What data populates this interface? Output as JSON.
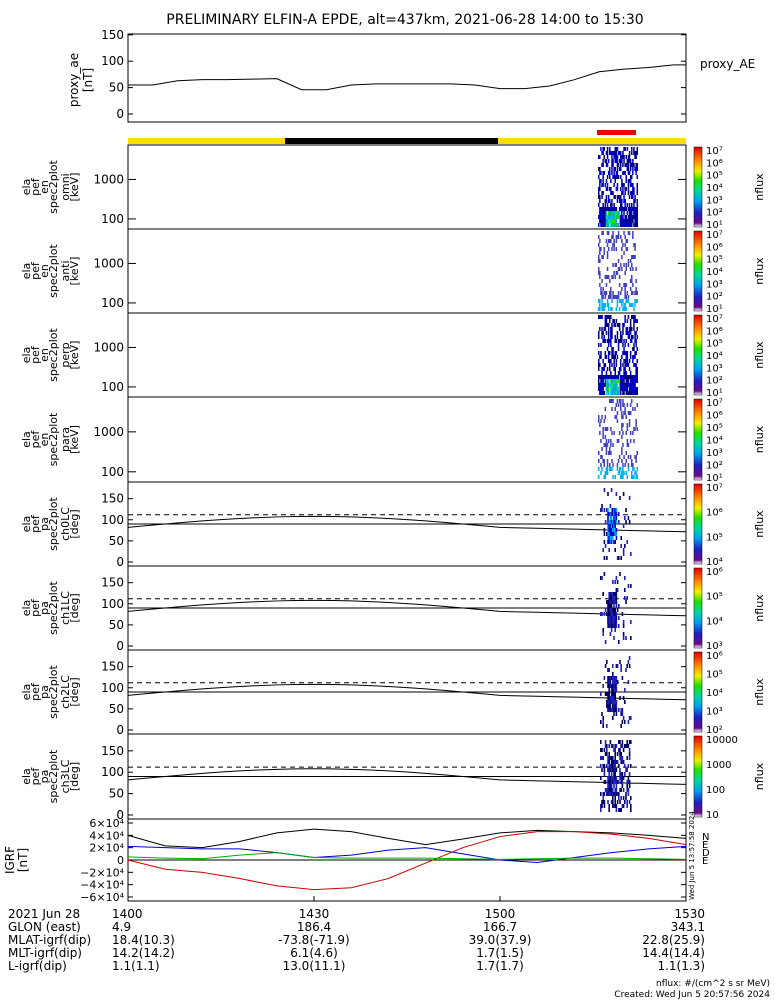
{
  "title": "PRELIMINARY ELFIN-A EPDE, alt=437km, 2021-06-28 14:00 to 15:30",
  "ae_panel": {
    "ylabel_1": "proxy_ae",
    "ylabel_2": "[nT]",
    "legend": "proxy_AE",
    "yticks": [
      "150",
      "100",
      "50",
      "0"
    ],
    "ylim": [
      0,
      150
    ]
  },
  "energy_panels": [
    {
      "label": [
        "ela",
        "pef",
        "en",
        "spec2plot",
        "omni",
        "[keV]"
      ],
      "yticks": [
        "1000",
        "100"
      ]
    },
    {
      "label": [
        "ela",
        "pef",
        "en",
        "spec2plot",
        "anti",
        "[keV]"
      ],
      "yticks": [
        "1000",
        "100"
      ]
    },
    {
      "label": [
        "ela",
        "pef",
        "en",
        "spec2plot",
        "perp",
        "[keV]"
      ],
      "yticks": [
        "1000",
        "100"
      ]
    },
    {
      "label": [
        "ela",
        "pef",
        "en",
        "spec2plot",
        "para",
        "[keV]"
      ],
      "yticks": [
        "1000",
        "100"
      ]
    }
  ],
  "pa_panels": [
    {
      "label": [
        "ela",
        "pef",
        "pa",
        "spec2plot",
        "ch0LC",
        "[deg]"
      ],
      "yticks": [
        "150",
        "100",
        "50",
        "0"
      ]
    },
    {
      "label": [
        "ela",
        "pef",
        "pa",
        "spec2plot",
        "ch1LC",
        "[deg]"
      ],
      "yticks": [
        "150",
        "100",
        "50",
        "0"
      ]
    },
    {
      "label": [
        "ela",
        "pef",
        "pa",
        "spec2plot",
        "ch2LC",
        "[deg]"
      ],
      "yticks": [
        "150",
        "100",
        "50",
        "0"
      ]
    },
    {
      "label": [
        "ela",
        "pef",
        "pa",
        "spec2plot",
        "ch3LC",
        "[deg]"
      ],
      "yticks": [
        "150",
        "100",
        "50",
        "0"
      ]
    }
  ],
  "colorbars": [
    {
      "ticks": [
        "10⁷",
        "10⁶",
        "10⁵",
        "10⁴",
        "10³",
        "10²",
        "10¹"
      ],
      "unit": "nflux"
    },
    {
      "ticks": [
        "10⁷",
        "10⁶",
        "10⁵",
        "10⁴",
        "10³",
        "10²",
        "10¹"
      ],
      "unit": "nflux"
    },
    {
      "ticks": [
        "10⁷",
        "10⁶",
        "10⁵",
        "10⁴",
        "10³",
        "10²",
        "10¹"
      ],
      "unit": "nflux"
    },
    {
      "ticks": [
        "10⁷",
        "10⁶",
        "10⁵",
        "10⁴",
        "10³",
        "10²",
        "10¹"
      ],
      "unit": "nflux"
    },
    {
      "ticks": [
        "10⁷",
        "10⁶",
        "10⁵",
        "10⁴"
      ],
      "unit": "nflux"
    },
    {
      "ticks": [
        "10⁶",
        "10⁵",
        "10⁴",
        "10³"
      ],
      "unit": "nflux"
    },
    {
      "ticks": [
        "10⁶",
        "10⁵",
        "10⁴",
        "10³",
        "10²"
      ],
      "unit": "nflux"
    },
    {
      "ticks": [
        "10000",
        "1000",
        "100",
        "10"
      ],
      "unit": "nflux"
    }
  ],
  "igrf_panel": {
    "ylabel_1": "IGRF",
    "ylabel_2": "[nT]",
    "yticks": [
      "6×10⁴",
      "4×10⁴",
      "2×10⁴",
      "0",
      "−2×10⁴",
      "−4×10⁴",
      "−6×10⁴"
    ],
    "ylim": [
      -60000,
      60000
    ],
    "legend": [
      "N",
      "E",
      "D",
      "E"
    ],
    "side_text": "Wed Jun  5 13:57:58 2024"
  },
  "xaxis": {
    "row_labels": [
      "2021 Jun 28",
      "GLON (east)",
      "MLAT-igrf(dip)",
      "MLT-igrf(dip)",
      "L-igrf(dip)"
    ],
    "columns": [
      {
        "time": "1400",
        "glon": "4.9",
        "mlat": "18.4(10.3)",
        "mlt": "14.2(14.2)",
        "l": "1.1(1.1)"
      },
      {
        "time": "1430",
        "glon": "186.4",
        "mlat": "-73.8(-71.9)",
        "mlt": "6.1(4.6)",
        "l": "13.0(11.1)"
      },
      {
        "time": "1500",
        "glon": "166.7",
        "mlat": "39.0(37.9)",
        "mlt": "1.7(1.5)",
        "l": "1.7(1.7)"
      },
      {
        "time": "1530",
        "glon": "343.1",
        "mlat": "22.8(25.9)",
        "mlt": "14.4(14.4)",
        "l": "1.1(1.3)"
      }
    ]
  },
  "footer": {
    "units": "nflux: #/(cm^2 s sr MeV)",
    "created": "Created: Wed Jun  5 20:57:56 2024"
  },
  "colors": {
    "day": "#ffdd00",
    "night": "#000000",
    "science_zone": "#ee0000",
    "igrf_n": "#000000",
    "igrf_e": "#0000cc",
    "igrf_d": "#cc0000",
    "igrf_e2": "#00aa00"
  },
  "chart_data": [
    {
      "type": "line",
      "title": "PRELIMINARY ELFIN-A EPDE, alt=437km, 2021-06-28 14:00 to 15:30",
      "ylabel": "proxy_ae [nT]",
      "ylim": [
        0,
        150
      ],
      "xlim": [
        0,
        90
      ],
      "x_unit": "minutes since 14:00",
      "series": [
        {
          "name": "proxy_AE",
          "x": [
            0,
            4,
            8,
            12,
            16,
            20,
            24,
            28,
            32,
            36,
            40,
            44,
            48,
            52,
            56,
            60,
            64,
            68,
            72,
            76,
            80,
            84,
            88,
            90
          ],
          "y": [
            55,
            55,
            63,
            65,
            65,
            66,
            67,
            46,
            46,
            55,
            57,
            57,
            57,
            57,
            55,
            48,
            48,
            53,
            65,
            80,
            85,
            88,
            93,
            93
          ]
        }
      ]
    },
    {
      "type": "line",
      "ylabel": "IGRF [nT]",
      "ylim": [
        -60000,
        60000
      ],
      "xlim": [
        0,
        90
      ],
      "series": [
        {
          "name": "N",
          "x": [
            0,
            6,
            12,
            18,
            24,
            30,
            36,
            42,
            48,
            54,
            60,
            66,
            72,
            78,
            84,
            90
          ],
          "y": [
            40000,
            23000,
            20000,
            30000,
            44000,
            50000,
            46000,
            35000,
            25000,
            34000,
            44000,
            48000,
            46000,
            44000,
            40000,
            35000
          ]
        },
        {
          "name": "E",
          "x": [
            0,
            6,
            12,
            18,
            24,
            30,
            36,
            42,
            48,
            54,
            60,
            66,
            72,
            78,
            84,
            90
          ],
          "y": [
            22000,
            20000,
            18000,
            18000,
            12000,
            4000,
            8000,
            16000,
            20000,
            10000,
            0,
            -4000,
            4000,
            12000,
            18000,
            22000
          ]
        },
        {
          "name": "D",
          "x": [
            0,
            6,
            12,
            18,
            24,
            30,
            36,
            42,
            48,
            54,
            60,
            66,
            72,
            78,
            84,
            90
          ],
          "y": [
            0,
            -15000,
            -20000,
            -30000,
            -42000,
            -48000,
            -45000,
            -30000,
            -5000,
            20000,
            38000,
            46000,
            46000,
            42000,
            35000,
            25000
          ]
        },
        {
          "name": "E",
          "x": [
            0,
            6,
            12,
            18,
            24,
            30,
            36,
            42,
            48,
            54,
            60,
            66,
            72,
            78,
            84,
            90
          ],
          "y": [
            5000,
            3000,
            2000,
            8000,
            12000,
            4000,
            3000,
            3000,
            3000,
            2000,
            1000,
            2000,
            3000,
            3000,
            2000,
            1000
          ]
        }
      ]
    }
  ]
}
